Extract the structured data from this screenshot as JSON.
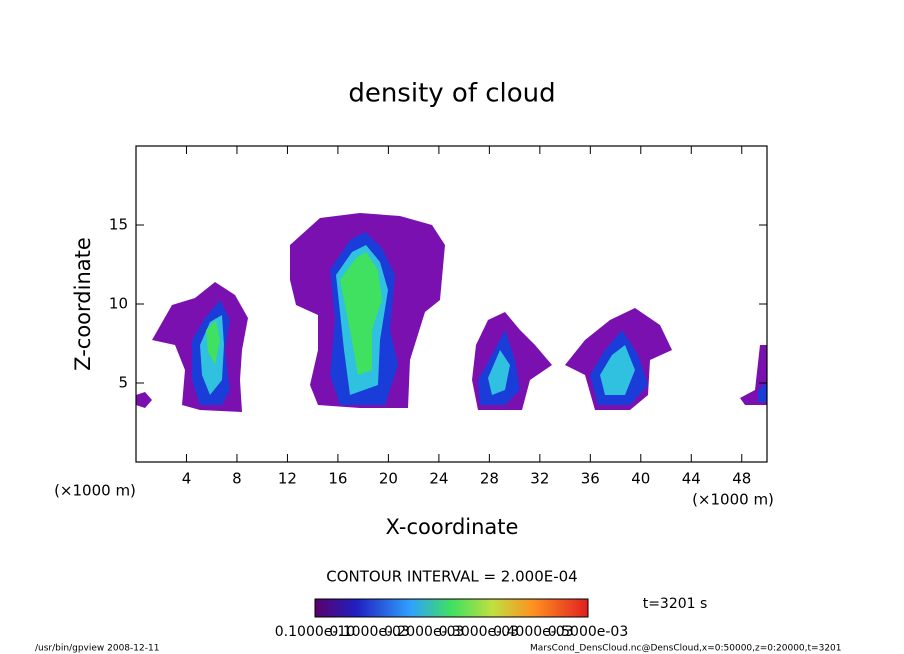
{
  "chart_data": {
    "type": "contour",
    "title": "density of cloud",
    "x_label": "X-coordinate",
    "y_label": "Z-coordinate",
    "x_unit": "(×1000 m)",
    "y_unit": "(×1000 m)",
    "xlim": [
      0,
      50
    ],
    "xticks": [
      4,
      8,
      12,
      16,
      20,
      24,
      28,
      32,
      36,
      40,
      44,
      48
    ],
    "ylim": [
      0,
      20
    ],
    "yticks": [
      5,
      10,
      15
    ],
    "contour_interval": "CONTOUR INTERVAL = 2.000E-04",
    "time_label": "t=3201 s",
    "colorbar_labels": [
      "0.1000e-10",
      "0.1000e-03",
      "0.2000e-03",
      "0.3000e-03",
      "0.4000e-03",
      "0.5000e-03"
    ],
    "footer_left": "/usr/bin/gpview  2008-12-11",
    "footer_right": "MarsCond_DensCloud.nc@DensCloud,x=0:50000,z=0:20000,t=3201"
  }
}
